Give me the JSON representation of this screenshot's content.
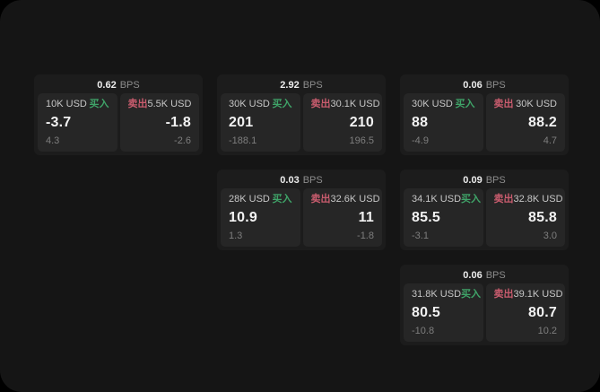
{
  "labels": {
    "buy": "买入",
    "sell": "卖出",
    "bps_suffix": "BPS"
  },
  "colors": {
    "buy_accent": "#3fa368",
    "sell_accent": "#c95c6e",
    "window_background": "#151515",
    "card_background": "#1c1c1c",
    "panel_background": "#262626"
  },
  "cards": [
    {
      "row": 1,
      "col": 1,
      "bps": "0.62",
      "buy": {
        "amount": "10K USD",
        "value": "-3.7",
        "secondary": "4.3"
      },
      "sell": {
        "amount": "5.5K USD",
        "value": "-1.8",
        "secondary": "-2.6"
      }
    },
    {
      "row": 1,
      "col": 2,
      "bps": "2.92",
      "buy": {
        "amount": "30K USD",
        "value": "201",
        "secondary": "-188.1"
      },
      "sell": {
        "amount": "30.1K USD",
        "value": "210",
        "secondary": "196.5"
      }
    },
    {
      "row": 1,
      "col": 3,
      "bps": "0.06",
      "buy": {
        "amount": "30K USD",
        "value": "88",
        "secondary": "-4.9"
      },
      "sell": {
        "amount": "30K USD",
        "value": "88.2",
        "secondary": "4.7"
      }
    },
    {
      "row": 2,
      "col": 2,
      "bps": "0.03",
      "buy": {
        "amount": "28K USD",
        "value": "10.9",
        "secondary": "1.3"
      },
      "sell": {
        "amount": "32.6K USD",
        "value": "11",
        "secondary": "-1.8"
      }
    },
    {
      "row": 2,
      "col": 3,
      "bps": "0.09",
      "buy": {
        "amount": "34.1K USD",
        "value": "85.5",
        "secondary": "-3.1"
      },
      "sell": {
        "amount": "32.8K USD",
        "value": "85.8",
        "secondary": "3.0"
      }
    },
    {
      "row": 3,
      "col": 3,
      "bps": "0.06",
      "buy": {
        "amount": "31.8K USD",
        "value": "80.5",
        "secondary": "-10.8"
      },
      "sell": {
        "amount": "39.1K USD",
        "value": "80.7",
        "secondary": "10.2"
      }
    }
  ]
}
